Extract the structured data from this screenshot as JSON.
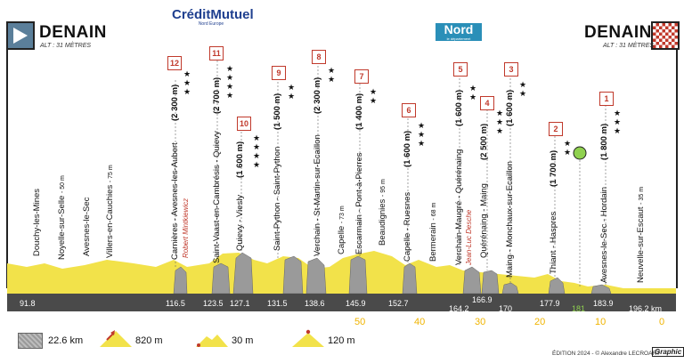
{
  "start": {
    "city": "DENAIN",
    "alt": "ALT : 31 MÈTRES"
  },
  "finish": {
    "city": "DENAIN",
    "alt": "ALT : 31 MÈTRES"
  },
  "sponsor_left": {
    "line1": "Crédit",
    "line2": "Mutuel",
    "sub": "Nord Europe"
  },
  "sponsor_right": {
    "name": "Nord",
    "sub": "le département"
  },
  "sectors": [
    {
      "num": "12",
      "name": "Carnières - Avesnes-les-Aubert",
      "length": "(2 300 m)",
      "stars": 3
    },
    {
      "num": "11",
      "name": "Saint-Vaast-en-Cambrésis - Quievy",
      "length": "(2 700 m)",
      "stars": 4
    },
    {
      "num": "10",
      "name": "Quievy - Viesly",
      "length": "(1 600 m)",
      "stars": 4
    },
    {
      "num": "9",
      "name": "Saint-Python - Saint-Python",
      "length": "(1 500 m)",
      "stars": 2
    },
    {
      "num": "8",
      "name": "Verchain - St-Martin-sur-Ecaillon",
      "length": "(2 300 m)",
      "stars": 2
    },
    {
      "num": "7",
      "name": "Escarmain - Pont-à-Pierres",
      "length": "(1 400 m)",
      "stars": 2
    },
    {
      "num": "6",
      "name": "Capelle - Ruesnes",
      "length": "(1 600 m)",
      "stars": 3
    },
    {
      "num": "5",
      "name": "Verchain-Maugré - Quérénaing",
      "length": "(1 600 m)",
      "stars": 2
    },
    {
      "num": "4",
      "name": "Quérénaing - Maing",
      "length": "(2 500 m)",
      "stars": 3
    },
    {
      "num": "3",
      "name": "Maing - Monchaux-sur-Ecaillon",
      "length": "(1 600 m)",
      "stars": 2
    },
    {
      "num": "2",
      "name": "Thiant - Haspres",
      "length": "(1 700 m)",
      "stars": 2
    },
    {
      "num": "1",
      "name": "Avesnes-le-Sec - Hordain",
      "length": "(1 800 m)",
      "stars": 3
    }
  ],
  "towns": [
    {
      "name": "Douchy-les-Mines",
      "alt": ""
    },
    {
      "name": "Noyelle-sur-Selle",
      "alt": "- 50 m"
    },
    {
      "name": "Avesnes-le-Sec",
      "alt": ""
    },
    {
      "name": "Villers-en-Cauchies",
      "alt": "- 75 m"
    },
    {
      "name": "Capelle",
      "alt": "- 73 m"
    },
    {
      "name": "Beaudignies",
      "alt": "- 95 m"
    },
    {
      "name": "Bermerain",
      "alt": "- 68 m"
    },
    {
      "name": "Neuvelle-sur-Escaut",
      "alt": "- 35 m"
    }
  ],
  "riders": [
    "Robert Mintkiewicz",
    "Jean-Luc Desche"
  ],
  "km_marks": [
    "91.8",
    "116.5",
    "123.5",
    "127.1",
    "131.5",
    "138.6",
    "145.9",
    "152.7",
    "164.2",
    "166.9",
    "170",
    "177.9",
    "183.9",
    "196.2 km"
  ],
  "sprint_km": "181",
  "remaining": [
    "50",
    "40",
    "30",
    "20",
    "10",
    "0"
  ],
  "legend": {
    "cobbles": "22.6 km",
    "climb": "820 m",
    "small_climb": "30 m",
    "mid_climb": "120 m"
  },
  "credit": "ÉDITION 2024 - © Alexandre LECROART",
  "credit_logo": "Graphic",
  "colors": {
    "profile": "#f2e24a",
    "base": "#4a4a4a",
    "badge": "#c0392b",
    "remaining": "#f0b400",
    "sprint": "#8fd14f",
    "sponsor_blue": "#1f3f8f",
    "nord_blue": "#2a8fb8"
  }
}
